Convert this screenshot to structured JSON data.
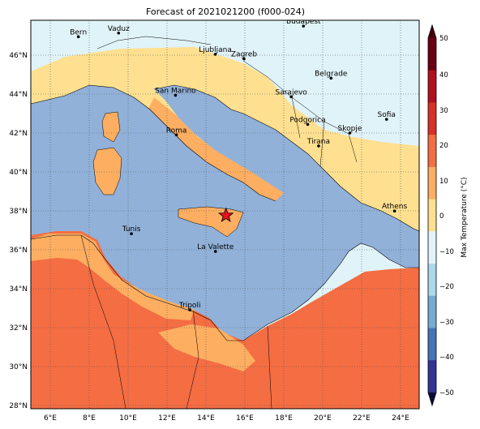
{
  "title": "Forecast of 2021021200 (f000-024)",
  "colorbar": {
    "label": "Max Temperature (°C)",
    "ticks": [
      "50",
      "40",
      "30",
      "20",
      "10",
      "0",
      "−10",
      "−20",
      "−30",
      "−40",
      "−50"
    ],
    "colors": [
      "#6b0012",
      "#b40f20",
      "#d73027",
      "#f46d43",
      "#fdae61",
      "#fee090",
      "#e0f3f8",
      "#abd9e9",
      "#74add1",
      "#4575b4",
      "#313695"
    ]
  },
  "axes": {
    "lon_ticks": [
      "6°E",
      "8°E",
      "10°E",
      "12°E",
      "14°E",
      "16°E",
      "18°E",
      "20°E",
      "22°E",
      "24°E"
    ],
    "lat_ticks": [
      "46°N",
      "44°N",
      "42°N",
      "40°N",
      "38°N",
      "36°N",
      "34°N",
      "32°N",
      "30°N",
      "28°N"
    ],
    "lon_range": [
      5,
      25
    ],
    "lat_range": [
      27.8,
      47.8
    ]
  },
  "cities": [
    {
      "name": "Bern",
      "lon": 7.45,
      "lat": 46.95
    },
    {
      "name": "Vaduz",
      "lon": 9.52,
      "lat": 47.14
    },
    {
      "name": "Budapest",
      "lon": 19.04,
      "lat": 47.5
    },
    {
      "name": "Ljubljana",
      "lon": 14.5,
      "lat": 46.05
    },
    {
      "name": "Zagreb",
      "lon": 15.98,
      "lat": 45.81
    },
    {
      "name": "Belgrade",
      "lon": 20.46,
      "lat": 44.82
    },
    {
      "name": "San Marino",
      "lon": 12.45,
      "lat": 43.94
    },
    {
      "name": "Sarajevo",
      "lon": 18.41,
      "lat": 43.86
    },
    {
      "name": "Sofia",
      "lon": 23.32,
      "lat": 42.7
    },
    {
      "name": "Podgorica",
      "lon": 19.26,
      "lat": 42.44
    },
    {
      "name": "Skopje",
      "lon": 21.43,
      "lat": 42.0
    },
    {
      "name": "Roma",
      "lon": 12.5,
      "lat": 41.9
    },
    {
      "name": "Tirana",
      "lon": 19.82,
      "lat": 41.33
    },
    {
      "name": "Athens",
      "lon": 23.73,
      "lat": 37.98
    },
    {
      "name": "Tunis",
      "lon": 10.18,
      "lat": 36.81
    },
    {
      "name": "La Valette",
      "lon": 14.51,
      "lat": 35.9
    },
    {
      "name": "Tripoli",
      "lon": 13.19,
      "lat": 32.89
    }
  ],
  "marker": {
    "type": "star",
    "lon": 15.05,
    "lat": 37.75
  }
}
